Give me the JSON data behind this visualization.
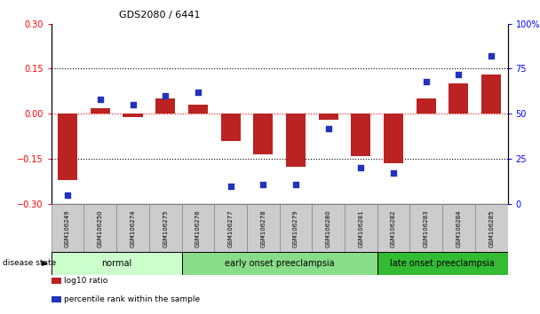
{
  "title": "GDS2080 / 6441",
  "samples": [
    "GSM106249",
    "GSM106250",
    "GSM106274",
    "GSM106275",
    "GSM106276",
    "GSM106277",
    "GSM106278",
    "GSM106279",
    "GSM106280",
    "GSM106281",
    "GSM106282",
    "GSM106283",
    "GSM106284",
    "GSM106285"
  ],
  "log10_ratio": [
    -0.22,
    0.02,
    -0.01,
    0.05,
    0.03,
    -0.09,
    -0.135,
    -0.175,
    -0.02,
    -0.14,
    -0.165,
    0.05,
    0.1,
    0.13
  ],
  "percentile_rank": [
    5,
    58,
    55,
    60,
    62,
    10,
    11,
    11,
    42,
    20,
    17,
    68,
    72,
    82
  ],
  "groups": [
    {
      "label": "normal",
      "start": 0,
      "end": 3,
      "color": "#ccffcc"
    },
    {
      "label": "early onset preeclampsia",
      "start": 4,
      "end": 9,
      "color": "#88dd88"
    },
    {
      "label": "late onset preeclampsia",
      "start": 10,
      "end": 13,
      "color": "#33bb33"
    }
  ],
  "ylim_left": [
    -0.3,
    0.3
  ],
  "ylim_right": [
    0,
    100
  ],
  "yticks_left": [
    -0.3,
    -0.15,
    0,
    0.15,
    0.3
  ],
  "yticks_right": [
    0,
    25,
    50,
    75,
    100
  ],
  "bar_color": "#bb2222",
  "dot_color": "#2233bb",
  "bar_width": 0.6,
  "disease_state_label": "disease state",
  "legend_bar_label": "log10 ratio",
  "legend_dot_label": "percentile rank within the sample",
  "title_fontsize": 8,
  "tick_fontsize": 7,
  "label_fontsize": 6,
  "band_label_fontsize": 7
}
